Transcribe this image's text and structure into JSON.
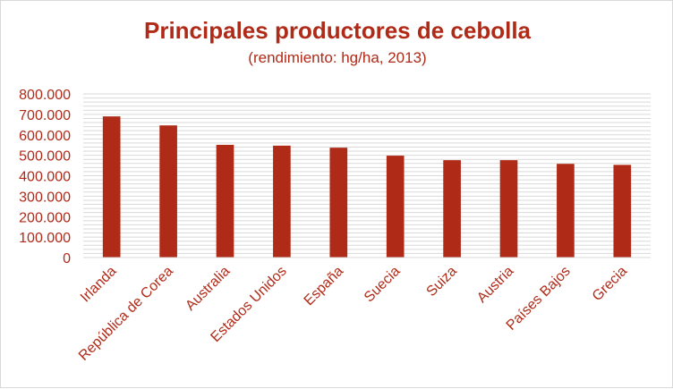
{
  "chart_data": {
    "type": "bar",
    "title": "Principales productores de cebolla",
    "subtitle": "(rendimiento: hg/ha, 2013)",
    "xlabel": "",
    "ylabel": "",
    "categories": [
      "Irlanda",
      "República de Corea",
      "Australia",
      "Estados Unidos",
      "España",
      "Suecia",
      "Suiza",
      "Austria",
      "Países Bajos",
      "Grecia"
    ],
    "values": [
      690000,
      646000,
      551000,
      547000,
      537000,
      498000,
      476000,
      476000,
      458000,
      453000
    ],
    "ylim": [
      0,
      800000
    ],
    "yticks": [
      0,
      100000,
      200000,
      300000,
      400000,
      500000,
      600000,
      700000,
      800000
    ],
    "ytick_labels": [
      "0",
      "100.000",
      "200.000",
      "300.000",
      "400.000",
      "500.000",
      "600.000",
      "700.000",
      "800.000"
    ],
    "grid": true,
    "legend": "none",
    "bar_color": "#b02a18",
    "text_color": "#b02a18",
    "grid_color": "#d9d9d9"
  }
}
